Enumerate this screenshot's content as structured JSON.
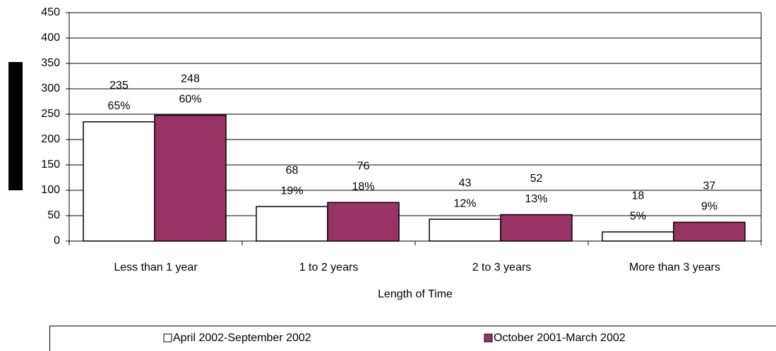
{
  "chart_data": {
    "type": "bar",
    "x_label": "Length of Time",
    "categories": [
      "Less than 1 year",
      "1 to 2 years",
      "2 to 3 years",
      "More than 3 years"
    ],
    "series": [
      {
        "name": "April 2002-September 2002",
        "color": "#ffffff",
        "values": [
          235,
          68,
          43,
          18
        ],
        "percent_labels": [
          "65%",
          "19%",
          "12%",
          "5%"
        ]
      },
      {
        "name": "October 2001-March 2002",
        "color": "#993366",
        "values": [
          248,
          76,
          52,
          37
        ],
        "percent_labels": [
          "60%",
          "18%",
          "13%",
          "9%"
        ]
      }
    ],
    "ylim": [
      0,
      450
    ],
    "yticks": [
      0,
      50,
      100,
      150,
      200,
      250,
      300,
      350,
      400,
      450
    ],
    "grid": true
  }
}
